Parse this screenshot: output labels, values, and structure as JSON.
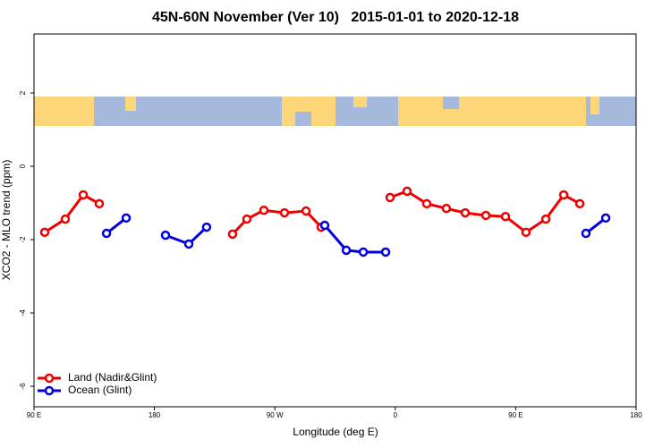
{
  "chart_data": {
    "type": "line",
    "title": "45N-60N November (Ver 10)   2015-01-01 to 2020-12-18",
    "x_label": "Longitude (deg E)",
    "y_label": "XCO2 - MLO trend (ppm)",
    "xlim": [
      90,
      540
    ],
    "xticks": [
      {
        "value": 90,
        "label": "90 E"
      },
      {
        "value": 180,
        "label": "180"
      },
      {
        "value": 270,
        "label": "90 W"
      },
      {
        "value": 360,
        "label": "0"
      },
      {
        "value": 450,
        "label": "90 E"
      },
      {
        "value": 540,
        "label": "180"
      }
    ],
    "ylim": [
      -6.56,
      3.61
    ],
    "yticks": [
      2,
      0,
      -2,
      -4,
      -6
    ],
    "legend_position": "bottom-left",
    "series": [
      {
        "name": "Land (Nadir&Glint)",
        "color": "#ee0000",
        "x": [
          98,
          113.4,
          126.8,
          138.8,
          null,
          238.4,
          249.1,
          261.8,
          277.2,
          293.3,
          304.6,
          null,
          356.1,
          368.8,
          383.5,
          398.2,
          412.3,
          427.7,
          442.4,
          457.7,
          472.5,
          485.9,
          497.9
        ],
        "values": [
          -1.8,
          -1.44,
          -0.78,
          -1.02,
          null,
          -1.85,
          -1.44,
          -1.2,
          -1.27,
          -1.22,
          -1.66,
          null,
          -0.85,
          -0.68,
          -1.02,
          -1.15,
          -1.27,
          -1.34,
          -1.37,
          -1.8,
          -1.44,
          -0.78,
          -1.02
        ]
      },
      {
        "name": "Ocean (Glint)",
        "color": "#0000dd",
        "x": [
          144.2,
          158.9,
          null,
          188.3,
          205.7,
          219,
          null,
          307.3,
          323.4,
          336.1,
          352.8,
          null,
          502.5,
          517.3
        ],
        "values": [
          -1.83,
          -1.41,
          null,
          -1.88,
          -2.12,
          -1.66,
          null,
          -1.61,
          -2.29,
          -2.34,
          -2.34,
          null,
          -1.83,
          -1.41
        ]
      }
    ]
  }
}
